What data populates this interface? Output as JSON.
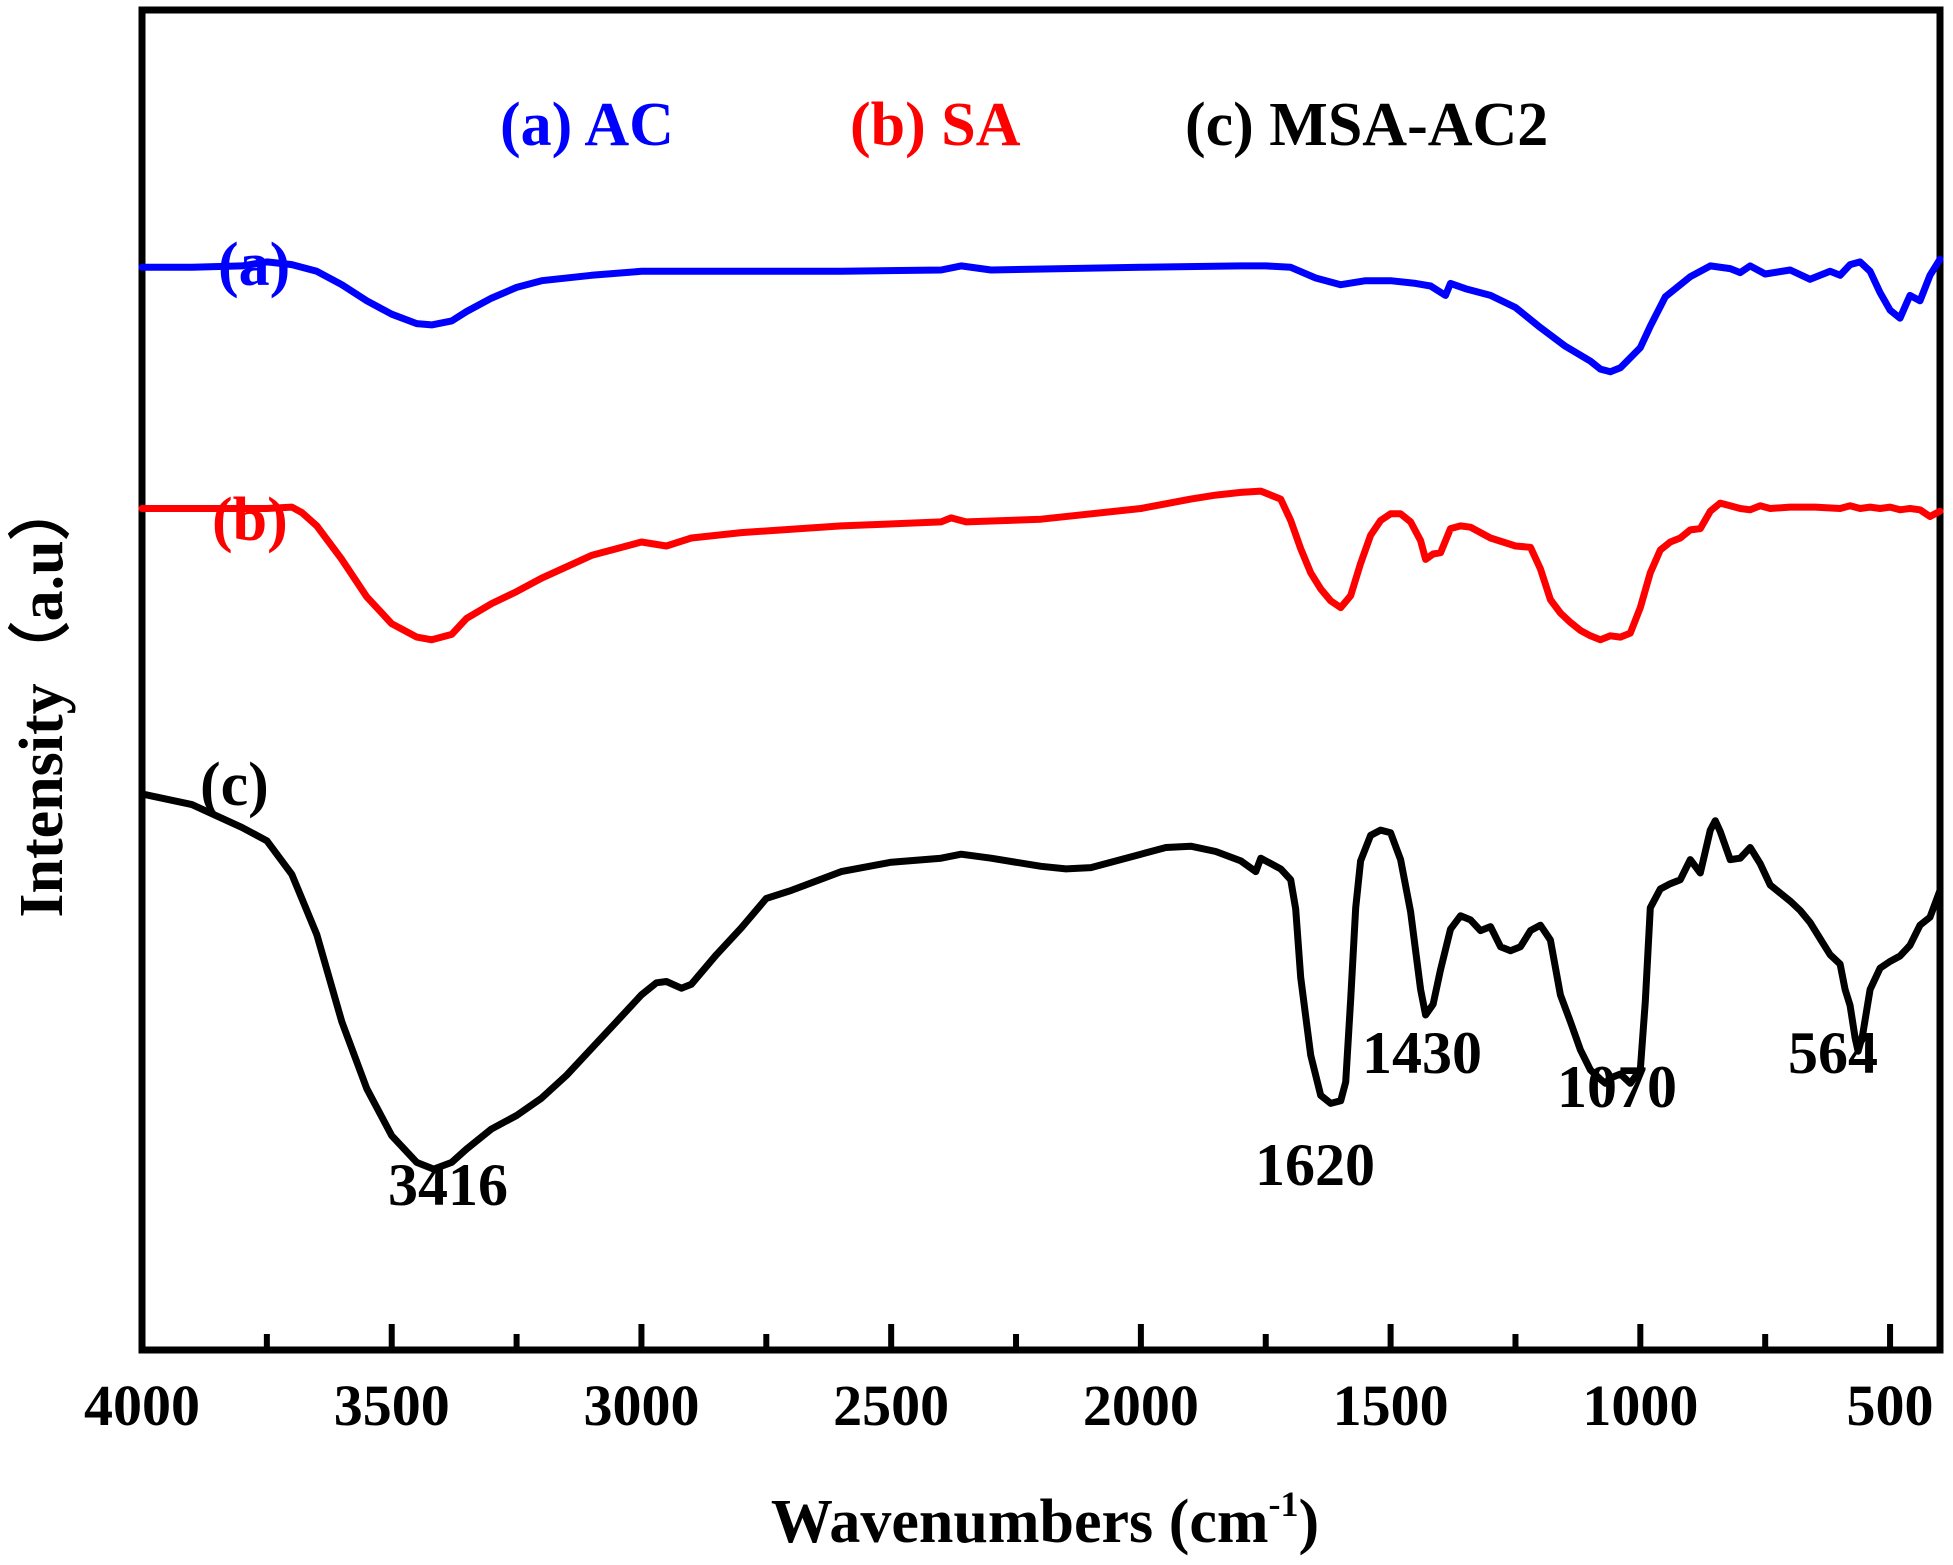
{
  "chart_data": {
    "type": "line",
    "title": "",
    "xlabel": "Wavenumbers",
    "xlabel_unit": "(cm",
    "xlabel_unit_sup": "-1",
    "xlabel_unit_close": ")",
    "ylabel": "Intensity（a.u）",
    "xlim": [
      4000,
      400
    ],
    "ylim": [
      0,
      100
    ],
    "x_ticks": [
      4000,
      3500,
      3000,
      2500,
      2000,
      1500,
      1000,
      500
    ],
    "x_tick_labels": [
      "4000",
      "3500",
      "3000",
      "2500",
      "2000",
      "1500",
      "1000",
      "500"
    ],
    "y_ticks_shown": false,
    "legend": [
      {
        "label": "(a) AC",
        "color": "#0000ff"
      },
      {
        "label": "(b) SA",
        "color": "#ff0000"
      },
      {
        "label": "(c) MSA-AC2",
        "color": "#000000"
      }
    ],
    "series": [
      {
        "name": "AC",
        "tag": "(a)",
        "color": "#0000ff",
        "x": [
          4000,
          3900,
          3800,
          3750,
          3700,
          3650,
          3600,
          3550,
          3500,
          3450,
          3420,
          3380,
          3350,
          3300,
          3250,
          3200,
          3100,
          3000,
          2800,
          2600,
          2400,
          2360,
          2300,
          2000,
          1800,
          1750,
          1700,
          1650,
          1600,
          1550,
          1500,
          1450,
          1420,
          1390,
          1380,
          1350,
          1300,
          1250,
          1200,
          1150,
          1100,
          1080,
          1060,
          1040,
          1000,
          980,
          950,
          900,
          860,
          820,
          800,
          780,
          750,
          700,
          660,
          620,
          600,
          580,
          560,
          540,
          520,
          500,
          480,
          460,
          440,
          420,
          400
        ],
        "values": [
          80.8,
          80.8,
          80.9,
          81.2,
          81.0,
          80.5,
          79.5,
          78.3,
          77.3,
          76.6,
          76.5,
          76.8,
          77.5,
          78.5,
          79.3,
          79.8,
          80.2,
          80.5,
          80.5,
          80.5,
          80.6,
          80.9,
          80.6,
          80.8,
          80.9,
          80.9,
          80.8,
          80.0,
          79.5,
          79.8,
          79.8,
          79.6,
          79.4,
          78.7,
          79.6,
          79.2,
          78.7,
          77.8,
          76.3,
          74.9,
          73.8,
          73.2,
          73.0,
          73.3,
          74.8,
          76.4,
          78.6,
          80.1,
          80.9,
          80.7,
          80.4,
          80.9,
          80.3,
          80.6,
          79.9,
          80.5,
          80.2,
          81.0,
          81.2,
          80.5,
          78.9,
          77.6,
          77.0,
          78.7,
          78.3,
          80.2,
          81.4
        ]
      },
      {
        "name": "SA",
        "tag": "(b)",
        "color": "#ff0000",
        "x": [
          4000,
          3900,
          3800,
          3750,
          3700,
          3680,
          3650,
          3600,
          3550,
          3500,
          3450,
          3420,
          3380,
          3350,
          3300,
          3250,
          3200,
          3100,
          3000,
          2950,
          2900,
          2800,
          2600,
          2400,
          2380,
          2350,
          2200,
          2000,
          1900,
          1850,
          1800,
          1760,
          1720,
          1700,
          1680,
          1660,
          1640,
          1620,
          1600,
          1580,
          1560,
          1540,
          1520,
          1500,
          1480,
          1460,
          1440,
          1430,
          1415,
          1400,
          1380,
          1360,
          1340,
          1300,
          1250,
          1220,
          1200,
          1180,
          1160,
          1140,
          1120,
          1100,
          1080,
          1060,
          1040,
          1020,
          1000,
          980,
          960,
          940,
          920,
          900,
          880,
          860,
          840,
          820,
          800,
          780,
          760,
          740,
          700,
          650,
          600,
          580,
          560,
          540,
          520,
          500,
          480,
          460,
          440,
          420,
          400
        ],
        "values": [
          62.8,
          62.8,
          62.8,
          62.8,
          62.9,
          62.5,
          61.5,
          59.0,
          56.2,
          54.2,
          53.2,
          53.0,
          53.4,
          54.6,
          55.7,
          56.6,
          57.6,
          59.3,
          60.3,
          60.0,
          60.6,
          61.0,
          61.5,
          61.8,
          62.1,
          61.8,
          62.0,
          62.8,
          63.5,
          63.8,
          64.0,
          64.1,
          63.5,
          61.9,
          59.8,
          58.0,
          56.8,
          55.9,
          55.4,
          56.3,
          58.7,
          60.8,
          61.9,
          62.4,
          62.4,
          61.8,
          60.4,
          59.0,
          59.4,
          59.5,
          61.3,
          61.5,
          61.4,
          60.6,
          60.0,
          59.9,
          58.3,
          56.0,
          55.0,
          54.3,
          53.7,
          53.3,
          53.0,
          53.3,
          53.2,
          53.5,
          55.4,
          58.0,
          59.7,
          60.3,
          60.6,
          61.2,
          61.3,
          62.6,
          63.2,
          63.0,
          62.8,
          62.7,
          63.0,
          62.8,
          62.9,
          62.9,
          62.8,
          63.0,
          62.8,
          62.9,
          62.8,
          62.9,
          62.7,
          62.8,
          62.7,
          62.2,
          62.6
        ]
      },
      {
        "name": "MSA-AC2",
        "tag": "(c)",
        "color": "#000000",
        "x": [
          4000,
          3900,
          3800,
          3750,
          3700,
          3650,
          3600,
          3550,
          3500,
          3450,
          3416,
          3380,
          3350,
          3300,
          3250,
          3200,
          3150,
          3100,
          3050,
          3000,
          2970,
          2950,
          2920,
          2900,
          2850,
          2800,
          2750,
          2700,
          2600,
          2500,
          2400,
          2360,
          2300,
          2200,
          2150,
          2100,
          2000,
          1950,
          1900,
          1850,
          1800,
          1770,
          1760,
          1750,
          1720,
          1700,
          1690,
          1680,
          1660,
          1640,
          1620,
          1600,
          1590,
          1580,
          1570,
          1560,
          1540,
          1520,
          1500,
          1480,
          1460,
          1440,
          1430,
          1415,
          1400,
          1380,
          1360,
          1340,
          1320,
          1300,
          1280,
          1260,
          1240,
          1220,
          1200,
          1180,
          1160,
          1140,
          1120,
          1100,
          1080,
          1070,
          1060,
          1040,
          1020,
          1000,
          990,
          980,
          960,
          940,
          920,
          900,
          880,
          860,
          850,
          840,
          820,
          800,
          780,
          760,
          740,
          700,
          680,
          660,
          640,
          620,
          600,
          590,
          580,
          570,
          564,
          555,
          540,
          520,
          500,
          480,
          460,
          440,
          420,
          400
        ],
        "values": [
          41.5,
          40.7,
          39.0,
          38.0,
          35.5,
          31.0,
          24.5,
          19.5,
          16.0,
          14.0,
          13.5,
          14.0,
          15.0,
          16.5,
          17.5,
          18.8,
          20.5,
          22.5,
          24.5,
          26.5,
          27.4,
          27.5,
          27.0,
          27.3,
          29.5,
          31.5,
          33.7,
          34.3,
          35.7,
          36.4,
          36.7,
          37.0,
          36.7,
          36.1,
          35.9,
          36.0,
          37.0,
          37.5,
          37.6,
          37.2,
          36.5,
          35.7,
          36.7,
          36.5,
          35.9,
          35.1,
          32.9,
          27.8,
          22.0,
          19.0,
          18.4,
          18.6,
          20.0,
          26.2,
          33.0,
          36.5,
          38.4,
          38.8,
          38.6,
          36.6,
          32.7,
          26.9,
          25.0,
          25.8,
          28.4,
          31.4,
          32.4,
          32.1,
          31.3,
          31.6,
          30.1,
          29.8,
          30.1,
          31.3,
          31.7,
          30.6,
          26.5,
          24.5,
          22.4,
          20.9,
          20.2,
          19.9,
          20.3,
          20.6,
          19.9,
          20.9,
          26.0,
          33.0,
          34.4,
          34.8,
          35.1,
          36.6,
          35.6,
          38.8,
          39.5,
          38.7,
          36.6,
          36.7,
          37.5,
          36.3,
          34.7,
          33.5,
          32.8,
          31.9,
          30.7,
          29.5,
          28.8,
          26.9,
          25.7,
          23.3,
          22.3,
          23.5,
          26.9,
          28.5,
          29.0,
          29.4,
          30.2,
          31.7,
          32.3,
          34.3
        ]
      }
    ],
    "annotations": [
      {
        "text": "3416",
        "near_x": 3416
      },
      {
        "text": "1620",
        "near_x": 1620
      },
      {
        "text": "1430",
        "near_x": 1430
      },
      {
        "text": "1070",
        "near_x": 1070
      },
      {
        "text": "564",
        "near_x": 564
      }
    ]
  }
}
